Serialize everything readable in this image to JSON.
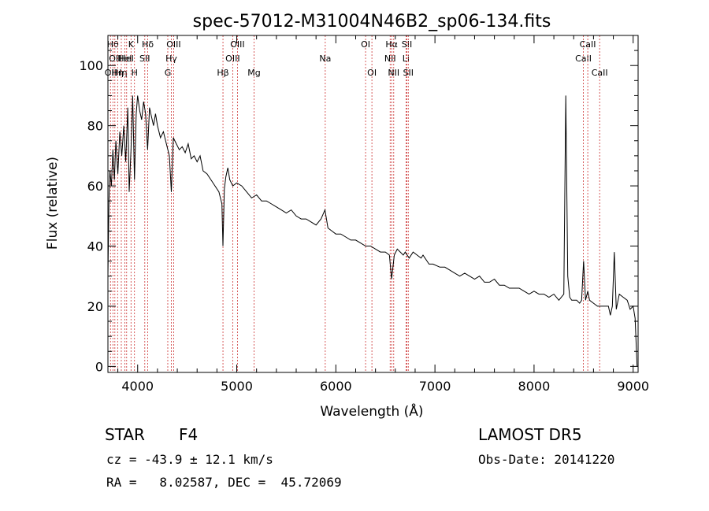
{
  "chart_data": {
    "type": "line",
    "title": "spec-57012-M31004N46B2_sp06-134.fits",
    "xlabel": "Wavelength (Å)",
    "ylabel": "Flux (relative)",
    "xlim": [
      3700,
      9050
    ],
    "ylim": [
      -2,
      110
    ],
    "x_ticks": [
      4000,
      5000,
      6000,
      7000,
      8000,
      9000
    ],
    "x_tick_labels": [
      "4000",
      "5000",
      "6000",
      "7000",
      "8000",
      "9000"
    ],
    "y_ticks": [
      0,
      20,
      40,
      60,
      80,
      100
    ],
    "y_tick_labels": [
      "0",
      "20",
      "40",
      "60",
      "80",
      "100"
    ],
    "grid": false,
    "series": [
      {
        "x": [
          3700,
          3710,
          3720,
          3735,
          3750,
          3765,
          3780,
          3800,
          3820,
          3840,
          3860,
          3880,
          3900,
          3915,
          3933,
          3950,
          3968,
          3985,
          4000,
          4020,
          4040,
          4060,
          4080,
          4101,
          4120,
          4140,
          4160,
          4180,
          4200,
          4230,
          4260,
          4290,
          4320,
          4340,
          4360,
          4390,
          4420,
          4450,
          4480,
          4510,
          4540,
          4570,
          4600,
          4630,
          4660,
          4700,
          4740,
          4780,
          4820,
          4850,
          4861,
          4875,
          4890,
          4910,
          4930,
          4960,
          5000,
          5050,
          5100,
          5150,
          5200,
          5250,
          5300,
          5350,
          5400,
          5450,
          5500,
          5550,
          5600,
          5650,
          5700,
          5750,
          5800,
          5850,
          5890,
          5920,
          5960,
          6000,
          6050,
          6100,
          6150,
          6200,
          6250,
          6300,
          6350,
          6400,
          6450,
          6500,
          6540,
          6563,
          6590,
          6620,
          6650,
          6680,
          6700,
          6720,
          6740,
          6780,
          6820,
          6860,
          6880,
          6900,
          6920,
          6940,
          6980,
          7050,
          7100,
          7150,
          7200,
          7250,
          7300,
          7350,
          7400,
          7450,
          7500,
          7550,
          7600,
          7650,
          7700,
          7750,
          7800,
          7850,
          7900,
          7950,
          8000,
          8050,
          8100,
          8150,
          8200,
          8250,
          8300,
          8320,
          8340,
          8360,
          8380,
          8400,
          8430,
          8460,
          8480,
          8500,
          8520,
          8542,
          8560,
          8600,
          8640,
          8680,
          8720,
          8750,
          8770,
          8790,
          8810,
          8830,
          8860,
          8900,
          8940,
          8970,
          9000,
          9020,
          9040
        ],
        "values": [
          30,
          55,
          65,
          60,
          72,
          62,
          75,
          64,
          78,
          70,
          80,
          68,
          86,
          58,
          72,
          90,
          62,
          84,
          90,
          85,
          82,
          88,
          84,
          72,
          86,
          83,
          80,
          84,
          80,
          76,
          78,
          74,
          70,
          58,
          76,
          74,
          72,
          73,
          71,
          74,
          69,
          70,
          68,
          70,
          65,
          64,
          62,
          60,
          58,
          54,
          40,
          59,
          63,
          66,
          62,
          60,
          61,
          60,
          58,
          56,
          57,
          55,
          55,
          54,
          53,
          52,
          51,
          52,
          50,
          49,
          49,
          48,
          47,
          49,
          52,
          46,
          45,
          44,
          44,
          43,
          42,
          42,
          41,
          40,
          40,
          39,
          38,
          38,
          37,
          29,
          37,
          39,
          38,
          37,
          38,
          37,
          36,
          38,
          37,
          36,
          37,
          36,
          35,
          34,
          34,
          33,
          33,
          32,
          31,
          30,
          31,
          30,
          29,
          30,
          28,
          28,
          29,
          27,
          27,
          26,
          26,
          26,
          25,
          24,
          25,
          24,
          24,
          23,
          24,
          22,
          24,
          90,
          30,
          23,
          22,
          22,
          22,
          21,
          22,
          35,
          22,
          25,
          22,
          21,
          20,
          20,
          20,
          20,
          17,
          20,
          38,
          19,
          24,
          23,
          22,
          19,
          20,
          16,
          0
        ]
      }
    ],
    "line_markers": [
      {
        "x": 3726,
        "label": "OII",
        "row": 2
      },
      {
        "x": 3750,
        "label": "Hθ",
        "row": 0
      },
      {
        "x": 3770,
        "label": "OII",
        "row": 1
      },
      {
        "x": 3798,
        "label": "Hη",
        "row": 2
      },
      {
        "x": 3835,
        "label": "Hη",
        "row": 2
      },
      {
        "x": 3870,
        "label": "HeI",
        "row": 1
      },
      {
        "x": 3889,
        "label": "HeI",
        "row": 1
      },
      {
        "x": 3933,
        "label": "K",
        "row": 0
      },
      {
        "x": 3968,
        "label": "H",
        "row": 2
      },
      {
        "x": 4072,
        "label": "SII",
        "row": 1
      },
      {
        "x": 4102,
        "label": "Hδ",
        "row": 0
      },
      {
        "x": 4304,
        "label": "G",
        "row": 2
      },
      {
        "x": 4340,
        "label": "Hγ",
        "row": 1
      },
      {
        "x": 4363,
        "label": "OIII",
        "row": 0
      },
      {
        "x": 4861,
        "label": "Hβ",
        "row": 2
      },
      {
        "x": 4959,
        "label": "OIII",
        "row": 1
      },
      {
        "x": 5007,
        "label": "OIII",
        "row": 0
      },
      {
        "x": 5175,
        "label": "Mg",
        "row": 2
      },
      {
        "x": 5893,
        "label": "Na",
        "row": 1
      },
      {
        "x": 6300,
        "label": "OI",
        "row": 0
      },
      {
        "x": 6364,
        "label": "OI",
        "row": 2
      },
      {
        "x": 6548,
        "label": "NII",
        "row": 1
      },
      {
        "x": 6563,
        "label": "Hα",
        "row": 0
      },
      {
        "x": 6584,
        "label": "NII",
        "row": 2
      },
      {
        "x": 6708,
        "label": "Li",
        "row": 1
      },
      {
        "x": 6717,
        "label": "SII",
        "row": 0
      },
      {
        "x": 6731,
        "label": "SII",
        "row": 2
      },
      {
        "x": 8498,
        "label": "CaII",
        "row": 1
      },
      {
        "x": 8542,
        "label": "CaII",
        "row": 0
      },
      {
        "x": 8662,
        "label": "CaII",
        "row": 2
      }
    ]
  },
  "info": {
    "object_class": "STAR",
    "subclass": "F4",
    "survey": "LAMOST DR5",
    "velocity": "cz = -43.9 ± 12.1 km/s",
    "obs_date": "Obs-Date: 20141220",
    "coords": "RA =   8.02587, DEC =  45.72069"
  },
  "colors": {
    "spectrum": "#000000",
    "line_markers": "#cc3333",
    "background": "#ffffff"
  }
}
